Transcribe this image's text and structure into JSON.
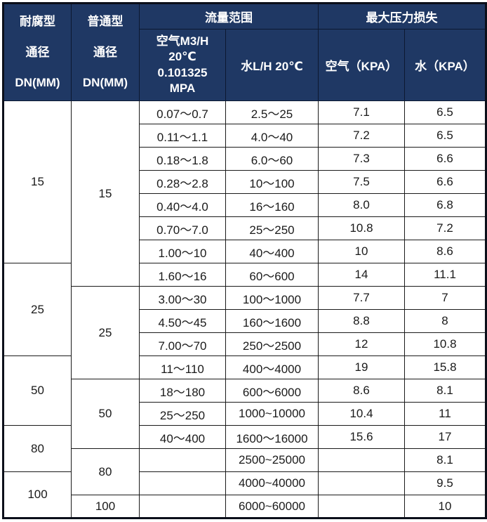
{
  "accent_color": "#1f3864",
  "grid_color": "#1a1a1a",
  "chart_data": {
    "type": "table",
    "header": {
      "corrosion_dn_lines": [
        "耐腐型",
        "通径",
        "DN(MM)"
      ],
      "normal_dn_lines": [
        "普通型",
        "通径",
        "DN(MM)"
      ],
      "flow_range_group": "流量范围",
      "max_pressure_loss_group": "最大压力损失",
      "air_flow_lines": [
        "空气M3/H",
        "20℃",
        "0.101325",
        "MPA"
      ],
      "water_flow": "水L/H 20℃",
      "air_kpa": "空气（KPA）",
      "water_kpa": "水（KPA）"
    },
    "corrosion_dn_spans": [
      {
        "label": "15",
        "rows": 7
      },
      {
        "label": "25",
        "rows": 4
      },
      {
        "label": "50",
        "rows": 3
      },
      {
        "label": "80",
        "rows": 2
      },
      {
        "label": "100",
        "rows": 2
      }
    ],
    "normal_dn_spans": [
      {
        "label": "15",
        "rows": 8
      },
      {
        "label": "25",
        "rows": 4
      },
      {
        "label": "50",
        "rows": 3
      },
      {
        "label": "80",
        "rows": 2
      },
      {
        "label": "100",
        "rows": 1
      }
    ],
    "rows": [
      [
        "0.07～0.7",
        "2.5～25",
        "7.1",
        "6.5"
      ],
      [
        "0.11～1.1",
        "4.0～40",
        "7.2",
        "6.5"
      ],
      [
        "0.18～1.8",
        "6.0～60",
        "7.3",
        "6.6"
      ],
      [
        "0.28～2.8",
        "10～100",
        "7.5",
        "6.6"
      ],
      [
        "0.40～4.0",
        "16～160",
        "8.0",
        "6.8"
      ],
      [
        "0.70～7.0",
        "25～250",
        "10.8",
        "7.2"
      ],
      [
        "1.00～10",
        "40～400",
        "10",
        "8.6"
      ],
      [
        "1.60～16",
        "60～600",
        "14",
        "11.1"
      ],
      [
        "3.00～30",
        "100～1000",
        "7.7",
        "7"
      ],
      [
        "4.50～45",
        "160～1600",
        "8.8",
        "8"
      ],
      [
        "7.00～70",
        "250～2500",
        "12",
        "10.8"
      ],
      [
        "11～110",
        "400～4000",
        "19",
        "15.8"
      ],
      [
        "18～180",
        "600～6000",
        "8.6",
        "8.1"
      ],
      [
        "25～250",
        "1000~10000",
        "10.4",
        "11"
      ],
      [
        "40～400",
        "1600～16000",
        "15.6",
        "17"
      ],
      [
        "",
        "2500~25000",
        "",
        "8.1"
      ],
      [
        "",
        "4000~40000",
        "",
        "9.5"
      ],
      [
        "",
        "6000~60000",
        "",
        "10"
      ]
    ]
  }
}
